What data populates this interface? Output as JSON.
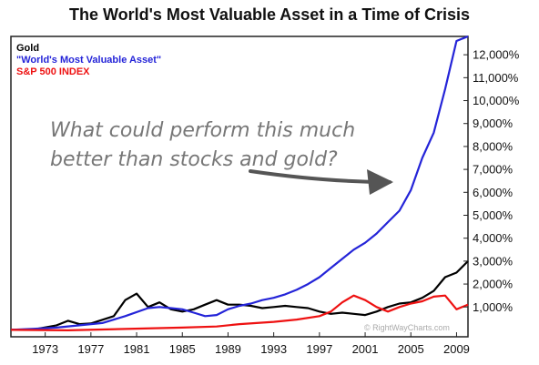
{
  "chart_data": {
    "type": "line",
    "title": "The World's Most Valuable Asset in a Time of Crisis",
    "xlabel": "",
    "ylabel": "",
    "xlim": [
      1970,
      2010
    ],
    "ylim": [
      -300,
      12800
    ],
    "x_ticks": [
      "1973",
      "1977",
      "1981",
      "1985",
      "1989",
      "1993",
      "1997",
      "2001",
      "2005",
      "2009"
    ],
    "y_ticks": [
      "1,000%",
      "2,000%",
      "3,000%",
      "4,000%",
      "5,000%",
      "6,000%",
      "7,000%",
      "8,000%",
      "9,000%",
      "10,000%",
      "11,000%",
      "12,000%"
    ],
    "legend_position": "top-left",
    "grid": false,
    "series": [
      {
        "name": "Gold",
        "color": "#000000",
        "points": [
          [
            1970,
            0
          ],
          [
            1972,
            20
          ],
          [
            1974,
            200
          ],
          [
            1975,
            400
          ],
          [
            1976,
            250
          ],
          [
            1977,
            280
          ],
          [
            1979,
            600
          ],
          [
            1980,
            1300
          ],
          [
            1981,
            1580
          ],
          [
            1982,
            1000
          ],
          [
            1983,
            1200
          ],
          [
            1984,
            900
          ],
          [
            1985,
            800
          ],
          [
            1986,
            900
          ],
          [
            1987,
            1100
          ],
          [
            1988,
            1300
          ],
          [
            1989,
            1100
          ],
          [
            1990,
            1100
          ],
          [
            1991,
            1050
          ],
          [
            1992,
            950
          ],
          [
            1993,
            1000
          ],
          [
            1994,
            1050
          ],
          [
            1995,
            1000
          ],
          [
            1996,
            950
          ],
          [
            1997,
            800
          ],
          [
            1998,
            700
          ],
          [
            1999,
            750
          ],
          [
            2000,
            700
          ],
          [
            2001,
            650
          ],
          [
            2002,
            800
          ],
          [
            2003,
            1000
          ],
          [
            2004,
            1150
          ],
          [
            2005,
            1200
          ],
          [
            2006,
            1400
          ],
          [
            2007,
            1700
          ],
          [
            2008,
            2300
          ],
          [
            2009,
            2500
          ],
          [
            2010,
            3000
          ]
        ]
      },
      {
        "name": "\"World's Most Valuable Asset\"",
        "color": "#2424d8",
        "points": [
          [
            1970,
            0
          ],
          [
            1972,
            50
          ],
          [
            1974,
            100
          ],
          [
            1976,
            200
          ],
          [
            1978,
            300
          ],
          [
            1980,
            600
          ],
          [
            1982,
            950
          ],
          [
            1983,
            1000
          ],
          [
            1984,
            950
          ],
          [
            1985,
            900
          ],
          [
            1986,
            750
          ],
          [
            1987,
            600
          ],
          [
            1988,
            650
          ],
          [
            1989,
            900
          ],
          [
            1990,
            1050
          ],
          [
            1991,
            1150
          ],
          [
            1992,
            1300
          ],
          [
            1993,
            1400
          ],
          [
            1994,
            1550
          ],
          [
            1995,
            1750
          ],
          [
            1996,
            2000
          ],
          [
            1997,
            2300
          ],
          [
            1998,
            2700
          ],
          [
            1999,
            3100
          ],
          [
            2000,
            3500
          ],
          [
            2001,
            3800
          ],
          [
            2002,
            4200
          ],
          [
            2003,
            4700
          ],
          [
            2004,
            5200
          ],
          [
            2005,
            6100
          ],
          [
            2006,
            7500
          ],
          [
            2007,
            8600
          ],
          [
            2008,
            10500
          ],
          [
            2009,
            12600
          ],
          [
            2010,
            12800
          ]
        ]
      },
      {
        "name": "S&P 500 INDEX",
        "color": "#ee1111",
        "points": [
          [
            1970,
            0
          ],
          [
            1975,
            -20
          ],
          [
            1980,
            40
          ],
          [
            1985,
            100
          ],
          [
            1988,
            150
          ],
          [
            1990,
            250
          ],
          [
            1993,
            350
          ],
          [
            1995,
            450
          ],
          [
            1997,
            600
          ],
          [
            1998,
            800
          ],
          [
            1999,
            1200
          ],
          [
            2000,
            1500
          ],
          [
            2001,
            1300
          ],
          [
            2002,
            1000
          ],
          [
            2003,
            800
          ],
          [
            2004,
            1000
          ],
          [
            2005,
            1150
          ],
          [
            2006,
            1250
          ],
          [
            2007,
            1450
          ],
          [
            2008,
            1500
          ],
          [
            2009,
            900
          ],
          [
            2010,
            1100
          ]
        ]
      }
    ]
  },
  "annotation": {
    "line1": "What could perform this much",
    "line2": "better than stocks and gold?"
  },
  "watermark": "© RightWayCharts.com"
}
